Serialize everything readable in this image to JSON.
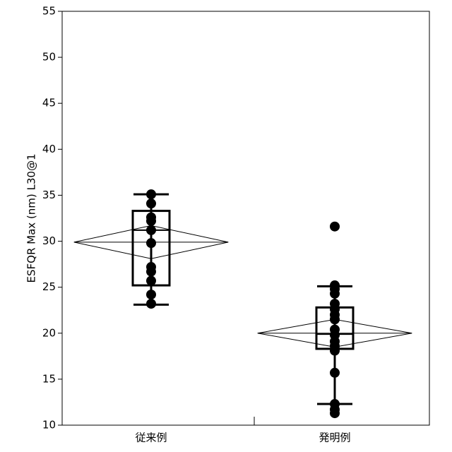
{
  "chart_data": {
    "type": "box",
    "y_label": "ESFQR Max (nm) L30@1",
    "ylim": [
      10,
      55
    ],
    "yticks": [
      10,
      15,
      20,
      25,
      30,
      35,
      40,
      45,
      50,
      55
    ],
    "categories": [
      "従来例",
      "発明例"
    ],
    "groups": [
      {
        "points": [
          35.1,
          34.1,
          32.6,
          32.2,
          31.2,
          29.8,
          27.2,
          26.7,
          25.7,
          24.2,
          23.2
        ],
        "q1": 25.2,
        "median": 31.2,
        "q3": 33.3,
        "whisker_low": 23.1,
        "whisker_high": 35.1,
        "mean": 29.9,
        "mean_ci": [
          28.1,
          31.7
        ]
      },
      {
        "points": [
          31.6,
          25.2,
          24.8,
          24.3,
          23.2,
          22.6,
          22.0,
          21.5,
          20.4,
          19.8,
          19.1,
          18.6,
          18.1,
          15.7,
          12.3,
          11.7,
          11.3
        ],
        "q1": 18.3,
        "median": 19.9,
        "q3": 22.8,
        "whisker_low": 12.3,
        "whisker_high": 25.1,
        "mean": 20.0,
        "mean_ci": [
          18.5,
          21.5
        ]
      }
    ],
    "color": "#000000"
  }
}
